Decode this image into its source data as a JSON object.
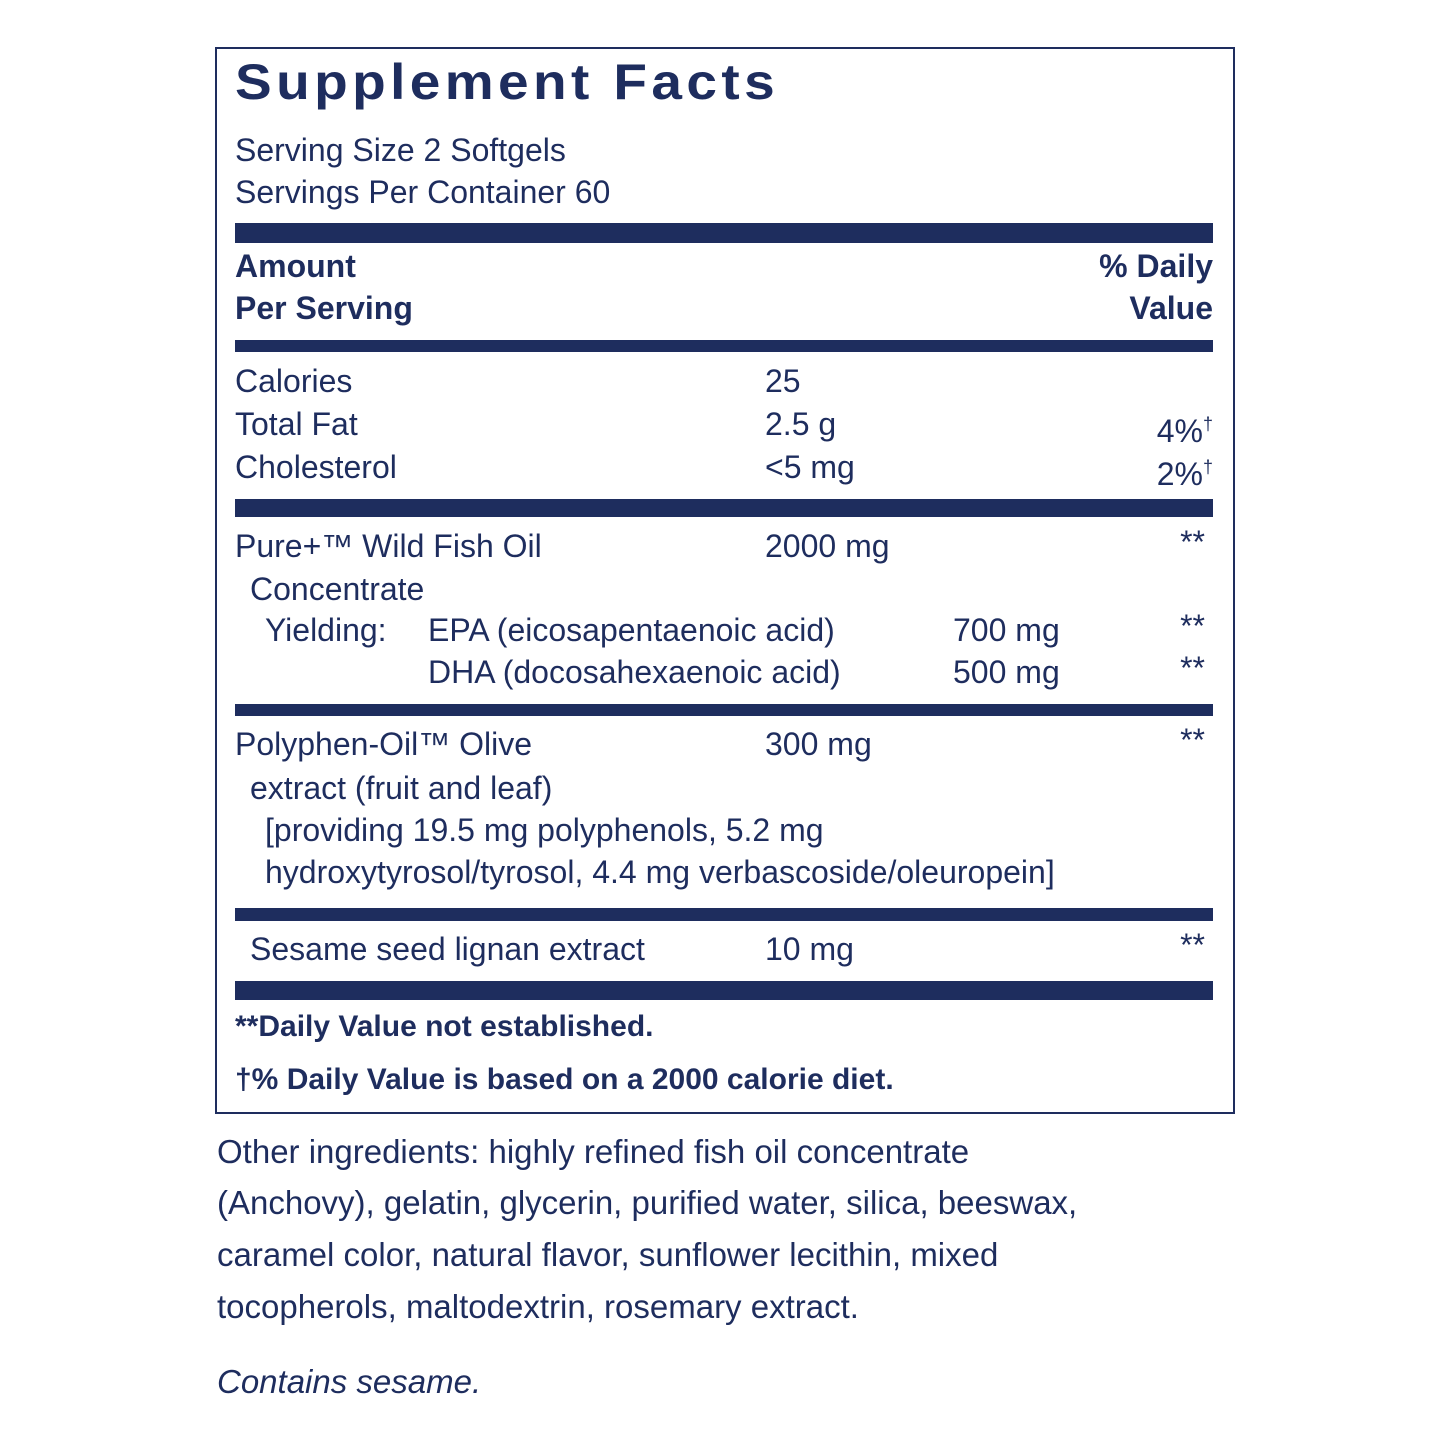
{
  "panel": {
    "title": "Supplement Facts",
    "serving_size": "Serving Size 2 Softgels",
    "servings_per_container": "Servings Per Container 60",
    "column_headers": {
      "amount": [
        "Amount",
        "Per Serving"
      ],
      "daily_value": [
        "% Daily",
        "Value"
      ]
    },
    "rows": [
      {
        "name": [
          "Calories"
        ],
        "amount": "25"
      },
      {
        "name": [
          "Total Fat"
        ],
        "amount": "2.5 g",
        "daily_value": "4%",
        "mark": "†"
      },
      {
        "name": [
          "Cholesterol"
        ],
        "amount": "<5 mg",
        "daily_value": "2%",
        "mark": "†"
      },
      {
        "name": [
          "Pure+™ Wild Fish Oil",
          "Concentrate"
        ],
        "amount": "2000 mg",
        "daily_value": "**",
        "sub": [
          {
            "label": "Yielding:",
            "name": "EPA (eicosapentaenoic acid)",
            "amount": "700 mg",
            "daily_value": "**"
          },
          {
            "name": "DHA (docosahexaenoic acid)",
            "amount": "500 mg",
            "daily_value": "**"
          }
        ]
      },
      {
        "name": [
          "Polyphen-Oil™ Olive",
          "extract (fruit and leaf)",
          "[providing 19.5 mg polyphenols, 5.2 mg",
          "hydroxytyrosol/tyrosol, 4.4 mg verbascoside/oleuropein]"
        ],
        "amount": "300 mg",
        "daily_value": "**"
      },
      {
        "name": [
          "Sesame seed lignan extract"
        ],
        "amount": "10 mg",
        "daily_value": "**"
      }
    ],
    "footnotes": [
      "**Daily Value not established.",
      "†% Daily Value is based on a 2000 calorie diet."
    ]
  },
  "other_ingredients": [
    "Other ingredients: highly refined fish oil concentrate",
    "(Anchovy), gelatin, glycerin, purified water, silica, beeswax,",
    "caramel color, natural flavor, sunflower lecithin, mixed",
    "tocopherols, maltodextrin, rosemary extract."
  ],
  "allergen": "Contains sesame."
}
